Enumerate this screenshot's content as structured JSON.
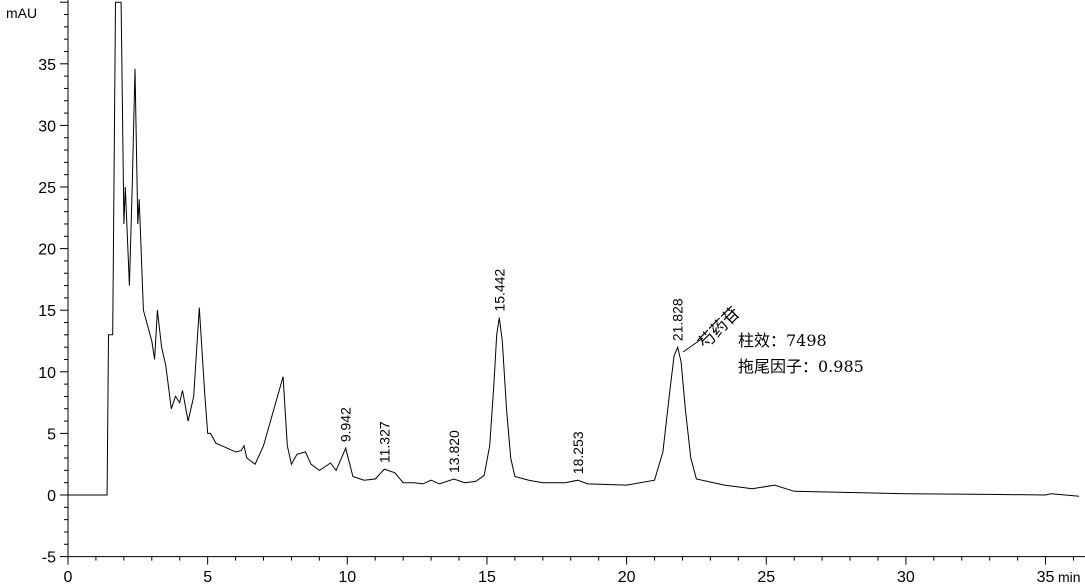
{
  "chart_data": {
    "type": "line",
    "title": "",
    "xlabel": "",
    "ylabel": "",
    "x_unit": "min",
    "y_unit": "mAU",
    "xlim": [
      0,
      36.2
    ],
    "ylim": [
      -5,
      40.2
    ],
    "x_ticks": [
      "0",
      "5",
      "10",
      "15",
      "20",
      "25",
      "30",
      "35"
    ],
    "y_ticks": [
      "-5",
      "0",
      "5",
      "10",
      "15",
      "20",
      "25",
      "30",
      "35"
    ],
    "grid": false,
    "line_color": "#000000",
    "series": [
      {
        "x": [
          0,
          1.4,
          1.45,
          1.55,
          1.6,
          1.7,
          1.9,
          2.0,
          2.05,
          2.2,
          2.3,
          2.4,
          2.5,
          2.55,
          2.7,
          3.0,
          3.1,
          3.2,
          3.35,
          3.5,
          3.7,
          3.85,
          4.0,
          4.1,
          4.3,
          4.5,
          4.7,
          4.9,
          5.0,
          5.1,
          5.3,
          5.5,
          6.0,
          6.2,
          6.3,
          6.4,
          6.7,
          7.0,
          7.5,
          7.7,
          7.85,
          8.0,
          8.2,
          8.5,
          8.7,
          9.0,
          9.4,
          9.6,
          9.942,
          10.2,
          10.6,
          11.0,
          11.327,
          11.7,
          12.0,
          12.4,
          12.7,
          13.0,
          13.3,
          13.82,
          14.2,
          14.6,
          14.9,
          15.1,
          15.25,
          15.35,
          15.442,
          15.55,
          15.7,
          15.85,
          16.0,
          16.5,
          17.0,
          17.8,
          18.253,
          18.6,
          20.0,
          21.0,
          21.3,
          21.55,
          21.7,
          21.828,
          21.95,
          22.1,
          22.3,
          22.5,
          23.5,
          24.5,
          25.3,
          26.0,
          28.0,
          30.0,
          33.0,
          35.0,
          35.2,
          36.2
        ],
        "y": [
          0,
          0,
          13,
          13,
          13,
          40,
          40,
          22,
          25,
          17,
          25,
          34.6,
          22,
          24,
          15,
          12.5,
          11,
          15,
          12,
          10.5,
          7,
          8,
          7.5,
          8.5,
          6,
          8,
          15.2,
          8,
          5,
          5,
          4.2,
          4,
          3.5,
          3.6,
          4,
          3,
          2.5,
          4,
          8,
          9.6,
          4,
          2.5,
          3.3,
          3.5,
          2.5,
          2,
          2.6,
          2,
          3.8,
          1.5,
          1.2,
          1.3,
          2.1,
          1.8,
          1,
          1,
          0.9,
          1.2,
          0.9,
          1.3,
          1,
          1.1,
          1.6,
          4,
          9,
          13,
          14.4,
          12.5,
          7,
          3,
          1.5,
          1.2,
          1,
          1,
          1.2,
          0.9,
          0.8,
          1.2,
          3.5,
          8.5,
          11.3,
          12,
          10.8,
          7,
          3,
          1.3,
          0.8,
          0.5,
          0.8,
          0.3,
          0.2,
          0.1,
          0.05,
          0,
          0.1,
          -0.1
        ]
      }
    ],
    "peak_labels": [
      "9.942",
      "11.327",
      "13.820",
      "15.442",
      "18.253",
      "21.828"
    ],
    "peak_heights": [
      3.8,
      2.1,
      1.3,
      14.4,
      1.2,
      12.0
    ],
    "annotation": {
      "compound": "芍药苷",
      "column_efficiency": "柱效：7498",
      "tailing_factor": "拖尾因子：0.985"
    }
  }
}
